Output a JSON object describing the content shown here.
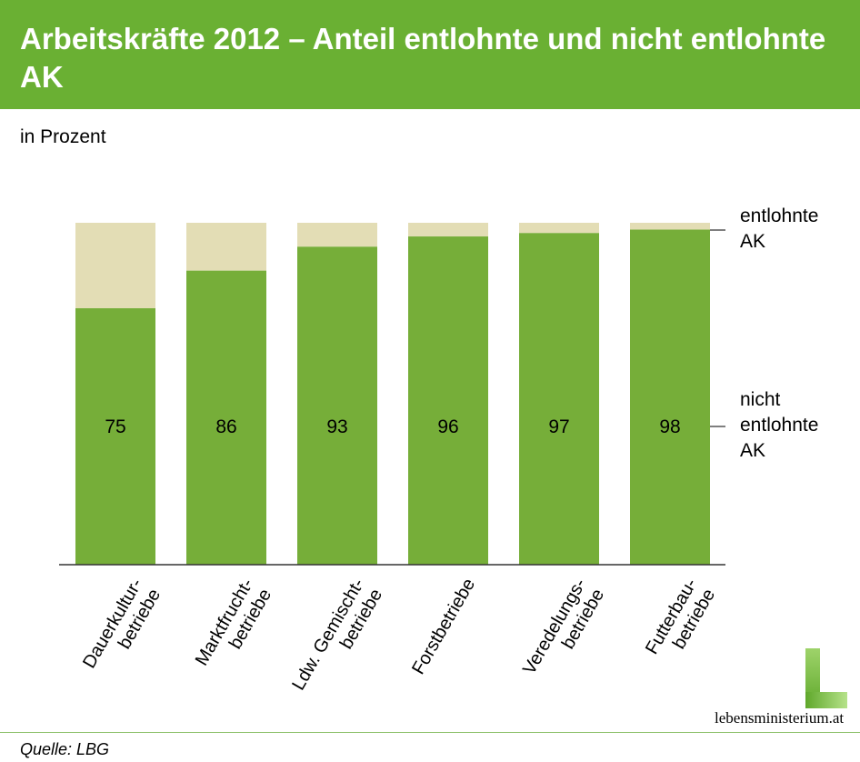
{
  "header": {
    "title": "Arbeitskräfte 2012 – Anteil entlohnte und nicht entlohnte AK"
  },
  "subtitle": "in Prozent",
  "source": "Quelle: LBG",
  "logo_text": "lebensministerium.at",
  "colors": {
    "header": "#6ab033",
    "nicht_entlohnte": "#76ae39",
    "entlohnte": "#e3ddb5"
  },
  "chart_data": {
    "type": "bar",
    "stacked": true,
    "categories": [
      [
        "Dauerkultur-",
        "betriebe"
      ],
      [
        "Marktfrucht-",
        "betriebe"
      ],
      [
        "Ldw. Gemischt-",
        "betriebe"
      ],
      [
        "Forstbetriebe"
      ],
      [
        "Veredelungs-",
        "betriebe"
      ],
      [
        "Futterbau-",
        "betriebe"
      ]
    ],
    "series": [
      {
        "name": "nicht entlohnte AK",
        "values": [
          75,
          86,
          93,
          96,
          97,
          98
        ]
      },
      {
        "name": "entlohnte AK",
        "values": [
          25,
          14,
          7,
          4,
          3,
          2
        ]
      }
    ],
    "legend_labels": [
      [
        "entlohnte",
        "AK"
      ],
      [
        "nicht",
        "entlohnte",
        "AK"
      ]
    ],
    "legend_placement": "right",
    "ylim": [
      0,
      100
    ],
    "grid": false,
    "unit": "in Prozent"
  }
}
